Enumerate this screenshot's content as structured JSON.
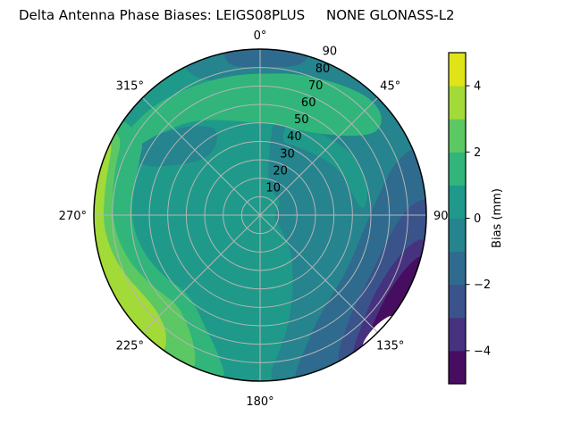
{
  "title": "Delta Antenna Phase Biases: LEIGS08PLUS     NONE GLONASS-L2",
  "chart_data": {
    "type": "heatmap",
    "projection": "polar",
    "title": "Delta Antenna Phase Biases: LEIGS08PLUS     NONE GLONASS-L2",
    "theta_zero_location": "top",
    "theta_direction": "clockwise",
    "theta_ticks": [
      {
        "angle_deg": 0,
        "label": "0°"
      },
      {
        "angle_deg": 45,
        "label": "45°"
      },
      {
        "angle_deg": 90,
        "label": "90"
      },
      {
        "angle_deg": 135,
        "label": "135°"
      },
      {
        "angle_deg": 180,
        "label": "180°"
      },
      {
        "angle_deg": 225,
        "label": "225°"
      },
      {
        "angle_deg": 270,
        "label": "270°"
      },
      {
        "angle_deg": 315,
        "label": "315°"
      }
    ],
    "r_max": 90,
    "r_gridlines": [
      10,
      20,
      30,
      40,
      50,
      60,
      70,
      80
    ],
    "r_ticks": [
      {
        "value": 10,
        "label": "10"
      },
      {
        "value": 20,
        "label": "20"
      },
      {
        "value": 30,
        "label": "30"
      },
      {
        "value": 40,
        "label": "40"
      },
      {
        "value": 50,
        "label": "50"
      },
      {
        "value": 60,
        "label": "60"
      },
      {
        "value": 70,
        "label": "70"
      },
      {
        "value": 80,
        "label": "80"
      },
      {
        "value": 90,
        "label": "90"
      }
    ],
    "r_label_azimuth_deg": 22.5,
    "levels": [
      -5,
      -4,
      -3,
      -2,
      -1,
      0,
      1,
      2,
      3,
      4,
      5
    ],
    "colors": [
      "#470d60",
      "#46327e",
      "#3a538b",
      "#2f6b8e",
      "#25848e",
      "#1f9a8a",
      "#31b57b",
      "#5cc863",
      "#a2da37",
      "#dfe318"
    ],
    "base_color_index": 5,
    "colorbar": {
      "label": "Bias (mm)",
      "vmin": -5,
      "vmax": 5,
      "ticks": [
        {
          "value": 4,
          "label": "4"
        },
        {
          "value": 2,
          "label": "2"
        },
        {
          "value": 0,
          "label": "0"
        },
        {
          "value": -2,
          "label": "−2"
        },
        {
          "value": -4,
          "label": "−4"
        }
      ]
    },
    "regions": [
      {
        "name": "region-bias-neg1-0-east",
        "color": 4,
        "arc": [
          8,
          176
        ],
        "points": [
          [
            176,
            84
          ],
          [
            173,
            77
          ],
          [
            170,
            70
          ],
          [
            166,
            62
          ],
          [
            161,
            52
          ],
          [
            155,
            42
          ],
          [
            148,
            33
          ],
          [
            139,
            25
          ],
          [
            130,
            17
          ],
          [
            120,
            12
          ],
          [
            108,
            9
          ],
          [
            95,
            8
          ],
          [
            82,
            8
          ],
          [
            70,
            10
          ],
          [
            58,
            13
          ],
          [
            45,
            13
          ],
          [
            32,
            14
          ],
          [
            20,
            16
          ],
          [
            13,
            20
          ],
          [
            9,
            28
          ],
          [
            8,
            38
          ],
          [
            8,
            50
          ],
          [
            8,
            70
          ]
        ]
      },
      {
        "name": "region-bias-neg1-0-top",
        "color": 4,
        "arc": [
          333,
          415
        ],
        "points": [
          [
            53,
            85
          ],
          [
            45,
            84
          ],
          [
            36,
            82
          ],
          [
            27,
            79
          ],
          [
            17,
            76
          ],
          [
            5,
            74
          ],
          [
            352,
            74
          ],
          [
            343,
            76
          ],
          [
            337,
            80
          ],
          [
            334,
            85
          ]
        ]
      },
      {
        "name": "region-bias-neg1-0-nw",
        "color": 4,
        "points": [
          [
            297,
            79
          ],
          [
            305,
            73
          ],
          [
            313,
            67
          ],
          [
            321,
            62
          ],
          [
            328,
            57
          ],
          [
            333,
            53
          ],
          [
            331,
            47
          ],
          [
            324,
            43
          ],
          [
            315,
            43
          ],
          [
            307,
            47
          ],
          [
            300,
            54
          ],
          [
            295,
            62
          ],
          [
            293,
            70
          ],
          [
            294,
            76
          ]
        ]
      },
      {
        "name": "region-bias-0-1-band",
        "color": 5,
        "points": [
          [
            16,
            55
          ],
          [
            26,
            54
          ],
          [
            36,
            55
          ],
          [
            46,
            57
          ],
          [
            56,
            60
          ],
          [
            66,
            61
          ],
          [
            76,
            60
          ],
          [
            83,
            58
          ],
          [
            87,
            56
          ],
          [
            83,
            53
          ],
          [
            75,
            51
          ],
          [
            65,
            50
          ],
          [
            55,
            48
          ],
          [
            45,
            45
          ],
          [
            35,
            43
          ],
          [
            25,
            42
          ],
          [
            16,
            41
          ]
        ]
      },
      {
        "name": "region-bias-neg2-neg1-cap",
        "color": 3,
        "arc": [
          347,
          377
        ],
        "points": [
          [
            15,
            84
          ],
          [
            8,
            81
          ],
          [
            0,
            80
          ],
          [
            352,
            81
          ],
          [
            348,
            84
          ]
        ]
      },
      {
        "name": "region-bias-neg2-neg1-se",
        "color": 3,
        "arc": [
          66,
          168
        ],
        "points": [
          [
            166,
            84
          ],
          [
            161,
            76
          ],
          [
            155,
            68
          ],
          [
            147,
            62
          ],
          [
            137,
            58
          ],
          [
            125,
            56
          ],
          [
            111,
            55
          ],
          [
            97,
            57
          ],
          [
            85,
            62
          ],
          [
            75,
            70
          ],
          [
            69,
            78
          ]
        ]
      },
      {
        "name": "region-bias-neg3-neg2-se",
        "color": 2,
        "arc": [
          84,
          152
        ],
        "points": [
          [
            150,
            85
          ],
          [
            144,
            78
          ],
          [
            136,
            72
          ],
          [
            126,
            69
          ],
          [
            114,
            68
          ],
          [
            102,
            70
          ],
          [
            92,
            75
          ],
          [
            86,
            82
          ]
        ]
      },
      {
        "name": "region-bias-neg4-neg3-se",
        "color": 1,
        "arc": [
          98,
          146
        ],
        "points": [
          [
            144,
            87
          ],
          [
            137,
            81
          ],
          [
            128,
            76
          ],
          [
            117,
            75
          ],
          [
            107,
            78
          ],
          [
            100,
            84
          ]
        ]
      },
      {
        "name": "region-bias-neg5-neg4-se",
        "color": 0,
        "arc": [
          104,
          139
        ],
        "points": [
          [
            137,
            87
          ],
          [
            130,
            83
          ],
          [
            121,
            81
          ],
          [
            112,
            83
          ],
          [
            106,
            87
          ]
        ]
      },
      {
        "name": "region-masked-gap",
        "fill": "#ffffff",
        "arc": [
          127,
          142
        ],
        "points": [
          [
            140,
            88
          ],
          [
            134,
            86.5
          ],
          [
            129,
            88
          ]
        ]
      },
      {
        "name": "region-bias-1-2-top",
        "color": 6,
        "points": [
          [
            293,
            87
          ],
          [
            303,
            85
          ],
          [
            315,
            83
          ],
          [
            327,
            80
          ],
          [
            340,
            78
          ],
          [
            352,
            77
          ],
          [
            4,
            77
          ],
          [
            14,
            79
          ],
          [
            24,
            81
          ],
          [
            34,
            84
          ],
          [
            43,
            87
          ],
          [
            50,
            86
          ],
          [
            54,
            81
          ],
          [
            54,
            74
          ],
          [
            48,
            64
          ],
          [
            40,
            57
          ],
          [
            30,
            52
          ],
          [
            18,
            50
          ],
          [
            5,
            50
          ],
          [
            352,
            51
          ],
          [
            342,
            54
          ],
          [
            333,
            58
          ],
          [
            324,
            63
          ],
          [
            315,
            67
          ],
          [
            306,
            72
          ],
          [
            298,
            77
          ],
          [
            294,
            82
          ]
        ]
      },
      {
        "name": "region-bias-1-2-left",
        "color": 6,
        "arc": [
          192,
          305
        ],
        "points": [
          [
            303,
            75
          ],
          [
            295,
            72
          ],
          [
            285,
            70
          ],
          [
            275,
            70
          ],
          [
            265,
            69
          ],
          [
            255,
            67
          ],
          [
            245,
            64
          ],
          [
            235,
            61
          ],
          [
            226,
            58
          ],
          [
            216,
            60
          ],
          [
            208,
            66
          ],
          [
            200,
            74
          ],
          [
            195,
            82
          ]
        ]
      },
      {
        "name": "region-bias-2-3-left",
        "color": 7,
        "arc": [
          203,
          300
        ],
        "points": [
          [
            298,
            85
          ],
          [
            290,
            83
          ],
          [
            280,
            81
          ],
          [
            270,
            80
          ],
          [
            260,
            78
          ],
          [
            250,
            75
          ],
          [
            240,
            71
          ],
          [
            231,
            68
          ],
          [
            223,
            66
          ],
          [
            215,
            70
          ],
          [
            209,
            76
          ],
          [
            205,
            83
          ]
        ]
      },
      {
        "name": "region-bias-3-4-left",
        "color": 8,
        "arc": [
          215,
          296
        ],
        "points": [
          [
            294,
            88
          ],
          [
            286,
            86
          ],
          [
            276,
            85
          ],
          [
            266,
            85
          ],
          [
            256,
            83
          ],
          [
            246,
            80
          ],
          [
            238,
            77
          ],
          [
            229,
            76
          ],
          [
            221,
            79
          ],
          [
            217,
            84
          ]
        ]
      }
    ]
  }
}
